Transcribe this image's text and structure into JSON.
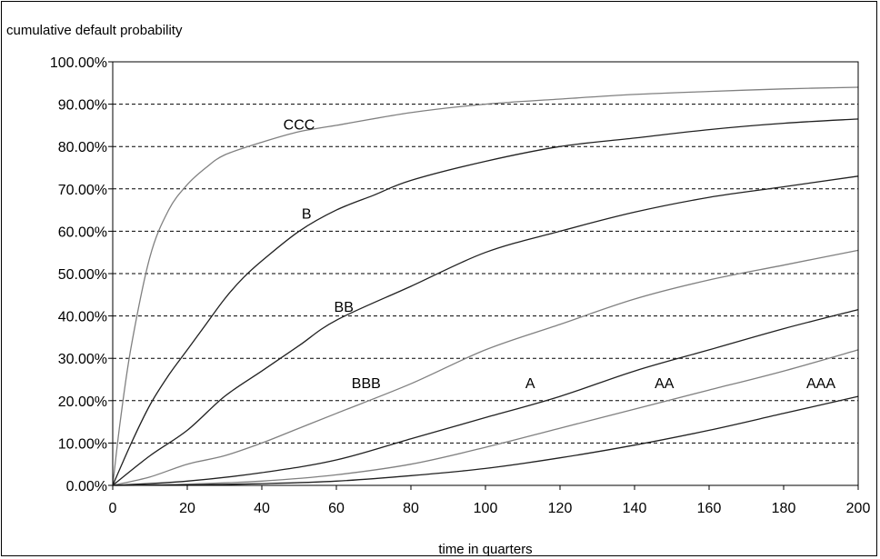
{
  "chart_data": {
    "type": "line",
    "title": "",
    "ylabel": "cumulative default probability",
    "xlabel": "time in quarters",
    "xlim": [
      0,
      200
    ],
    "ylim": [
      0,
      100
    ],
    "y_unit": "%",
    "grid": "horizontal dashed",
    "x_ticks": [
      "0",
      "20",
      "40",
      "60",
      "80",
      "100",
      "120",
      "140",
      "160",
      "180",
      "200"
    ],
    "y_ticks": [
      "0.00%",
      "10.00%",
      "20.00%",
      "30.00%",
      "40.00%",
      "50.00%",
      "60.00%",
      "70.00%",
      "80.00%",
      "90.00%",
      "100.00%"
    ],
    "series": [
      {
        "name": "CCC",
        "color": "#808080",
        "label_at": [
          50,
          84
        ],
        "x": [
          0,
          2,
          5,
          10,
          15,
          20,
          25,
          30,
          40,
          50,
          60,
          80,
          100,
          120,
          140,
          160,
          180,
          200
        ],
        "y": [
          0,
          15,
          33,
          54,
          65,
          71,
          75,
          78,
          81,
          83.5,
          85,
          88,
          90,
          91.2,
          92.3,
          93,
          93.6,
          94
        ]
      },
      {
        "name": "B",
        "color": "#202020",
        "label_at": [
          52,
          63
        ],
        "x": [
          0,
          5,
          10,
          15,
          20,
          25,
          30,
          35,
          40,
          50,
          60,
          70,
          80,
          100,
          120,
          140,
          160,
          180,
          200
        ],
        "y": [
          0,
          10,
          19,
          26,
          32,
          38,
          44,
          49,
          53,
          60,
          65,
          68.5,
          72,
          76.5,
          80,
          82,
          84,
          85.5,
          86.5
        ]
      },
      {
        "name": "BB",
        "color": "#202020",
        "label_at": [
          62,
          41
        ],
        "x": [
          0,
          10,
          20,
          30,
          40,
          50,
          60,
          80,
          100,
          120,
          140,
          160,
          180,
          200
        ],
        "y": [
          0,
          7,
          13,
          21,
          27,
          33,
          39,
          47,
          55,
          60,
          64.5,
          68,
          70.5,
          73
        ]
      },
      {
        "name": "BBB",
        "color": "#808080",
        "label_at": [
          68,
          23
        ],
        "x": [
          0,
          10,
          20,
          30,
          40,
          50,
          60,
          80,
          100,
          120,
          140,
          160,
          180,
          200
        ],
        "y": [
          0,
          2,
          5,
          7,
          10,
          13.5,
          17,
          24,
          32,
          38,
          44,
          48.5,
          52,
          55.5
        ]
      },
      {
        "name": "A",
        "color": "#202020",
        "label_at": [
          112,
          23
        ],
        "x": [
          0,
          20,
          40,
          60,
          80,
          100,
          120,
          140,
          160,
          180,
          200
        ],
        "y": [
          0,
          1,
          3,
          6,
          11,
          16,
          21,
          27,
          32,
          37,
          41.5
        ]
      },
      {
        "name": "AA",
        "color": "#808080",
        "label_at": [
          148,
          23
        ],
        "x": [
          0,
          20,
          40,
          60,
          80,
          100,
          120,
          140,
          160,
          180,
          200
        ],
        "y": [
          0,
          0.3,
          1,
          2.5,
          5,
          9,
          13.5,
          18,
          22.5,
          27,
          32
        ]
      },
      {
        "name": "AAA",
        "color": "#202020",
        "label_at": [
          190,
          23
        ],
        "x": [
          0,
          20,
          40,
          60,
          80,
          100,
          120,
          140,
          160,
          180,
          200
        ],
        "y": [
          0,
          0.1,
          0.4,
          1,
          2.3,
          4,
          6.5,
          9.5,
          13,
          17,
          21
        ]
      }
    ]
  }
}
